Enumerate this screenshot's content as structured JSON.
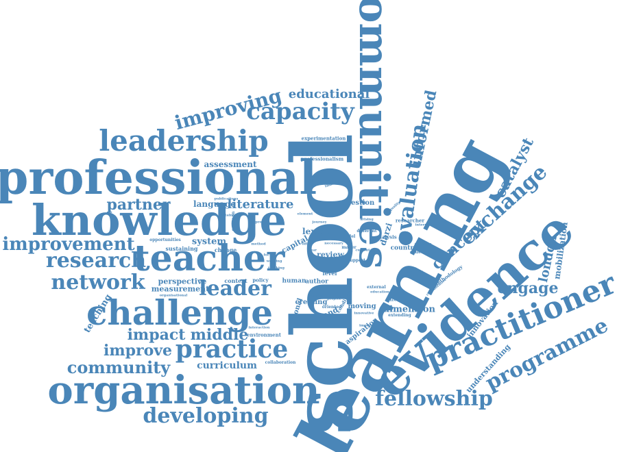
{
  "colors": {
    "word": "#4a86b8",
    "background": "#ffffff"
  },
  "words": {
    "school": "school",
    "learning": "learning",
    "communities": "communities",
    "evidence": "evidence",
    "professional": "professional",
    "knowledge": "knowledge",
    "teacher": "teacher",
    "challenge": "challenge",
    "organisation": "organisation",
    "leadership": "leadership",
    "practitioner": "practitioner",
    "practice": "practice",
    "capacity": "capacity",
    "improving": "improving",
    "research": "research",
    "improvement": "improvement",
    "network": "network",
    "leader": "leader",
    "developing": "developing",
    "fellowship": "fellowship",
    "programme": "programme",
    "exchange": "exchange",
    "evaluation": "evaluation",
    "informed": "informed",
    "concept": "concept",
    "engage": "engage",
    "community": "community",
    "improve": "improve",
    "impact": "impact",
    "middle": "middle",
    "partner": "partner",
    "literature": "literature",
    "educational": "educational",
    "catalyst": "catalyst",
    "london": "london",
    "mobilization": "mobilization",
    "curriculum": "curriculum",
    "assessment": "assessment",
    "language": "language",
    "teaching": "teaching",
    "perspective": "perspective",
    "measurement": "measurement",
    "system": "system",
    "lexicon": "lexicon",
    "dimension": "dimension",
    "england": "england",
    "understanding": "understanding",
    "innovation": "innovation",
    "capital": "capital",
    "review": "review",
    "question": "question",
    "professionalism": "professionalism",
    "experimentation": "experimentation",
    "approach": "approach",
    "countrie": "countrie",
    "moving": "moving",
    "aspiration": "aspiration",
    "human": "human",
    "creating": "creating",
    "author": "author",
    "context": "context",
    "darzi": "darzi",
    "analysis": "analysis",
    "collective": "collective",
    "researcher": "researcher",
    "methodology": "methodology",
    "effective": "effective",
    "extending": "extending",
    "different": "different",
    "level": "level",
    "sustaining": "sustaining",
    "opportunities": "opportunities",
    "change": "change",
    "collaboration": "collaboration",
    "environment": "environment",
    "national": "national",
    "policy": "policy",
    "organisational": "organisational",
    "maker": "maker",
    "revisiting": "revisiting",
    "example": "example",
    "international": "international",
    "sustainable": "sustainable",
    "publications": "publications",
    "individual": "individual",
    "support": "support",
    "external": "external",
    "condition": "condition",
    "oriented": "oriented",
    "model": "model",
    "common": "common",
    "project": "project",
    "interaction": "interaction",
    "education": "education",
    "collaborative": "collaborative",
    "implication": "implication",
    "year": "year",
    "journey": "journey",
    "arising": "arising",
    "current": "current",
    "working": "working",
    "thinking": "thinking",
    "generate": "generate",
    "leading": "leading",
    "focus": "focus",
    "offer": "offer",
    "method": "method",
    "element": "element",
    "innovative": "innovative",
    "necessary": "necessary",
    "process": "process",
    "quality": "quality"
  }
}
